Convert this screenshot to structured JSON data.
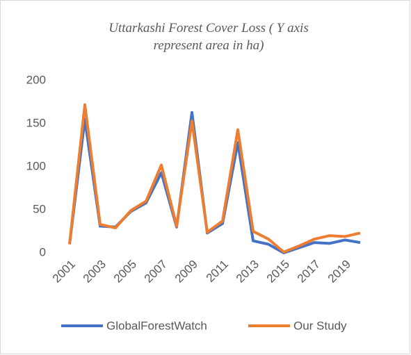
{
  "chart_data": {
    "type": "line",
    "title": "Uttarkashi Forest Cover Loss ( Y axis represent area in ha)",
    "x": [
      2001,
      2002,
      2003,
      2004,
      2005,
      2006,
      2007,
      2008,
      2009,
      2010,
      2011,
      2012,
      2013,
      2014,
      2015,
      2016,
      2017,
      2018,
      2019,
      2020
    ],
    "xlim": [
      2001,
      2020
    ],
    "xticks": [
      2001,
      2003,
      2005,
      2007,
      2009,
      2011,
      2013,
      2015,
      2017,
      2019
    ],
    "ylim": [
      0,
      200
    ],
    "yticks": [
      0,
      50,
      100,
      150,
      200
    ],
    "grid": false,
    "legend": "bottom",
    "series": [
      {
        "name": "GlobalForestWatch",
        "color": "#4472c4",
        "values": [
          10,
          155,
          31,
          30,
          48,
          58,
          93,
          30,
          163,
          23,
          34,
          128,
          14,
          10,
          0,
          6,
          12,
          11,
          15,
          12
        ]
      },
      {
        "name": "Our Study",
        "color": "#ed7d31",
        "values": [
          10,
          172,
          33,
          29,
          49,
          60,
          102,
          31,
          153,
          24,
          37,
          143,
          25,
          16,
          1,
          8,
          16,
          20,
          19,
          23
        ]
      }
    ]
  }
}
